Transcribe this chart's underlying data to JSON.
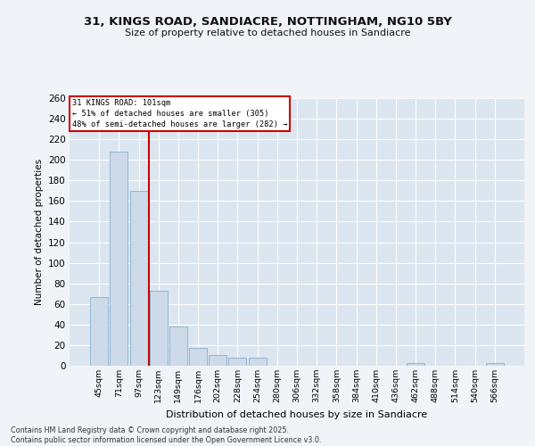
{
  "title_line1": "31, KINGS ROAD, SANDIACRE, NOTTINGHAM, NG10 5BY",
  "title_line2": "Size of property relative to detached houses in Sandiacre",
  "xlabel": "Distribution of detached houses by size in Sandiacre",
  "ylabel": "Number of detached properties",
  "footer_line1": "Contains HM Land Registry data © Crown copyright and database right 2025.",
  "footer_line2": "Contains public sector information licensed under the Open Government Licence v3.0.",
  "bar_labels": [
    "45sqm",
    "71sqm",
    "97sqm",
    "123sqm",
    "149sqm",
    "176sqm",
    "202sqm",
    "228sqm",
    "254sqm",
    "280sqm",
    "306sqm",
    "332sqm",
    "358sqm",
    "384sqm",
    "410sqm",
    "436sqm",
    "462sqm",
    "488sqm",
    "514sqm",
    "540sqm",
    "566sqm"
  ],
  "bar_values": [
    67,
    208,
    170,
    73,
    38,
    17,
    10,
    8,
    8,
    0,
    0,
    0,
    0,
    0,
    0,
    0,
    3,
    0,
    0,
    0,
    3
  ],
  "bar_color": "#ccdaea",
  "bar_edgecolor": "#8ab0cc",
  "bg_color": "#dce6f0",
  "grid_color": "#ffffff",
  "vline_x": 2.5,
  "vline_color": "#cc0000",
  "annotation_text": "31 KINGS ROAD: 101sqm\n← 51% of detached houses are smaller (305)\n48% of semi-detached houses are larger (282) →",
  "annotation_box_facecolor": "#ffffff",
  "annotation_box_edgecolor": "#cc0000",
  "ylim": [
    0,
    260
  ],
  "yticks": [
    0,
    20,
    40,
    60,
    80,
    100,
    120,
    140,
    160,
    180,
    200,
    220,
    240,
    260
  ],
  "fig_bg_color": "#f0f4f8"
}
